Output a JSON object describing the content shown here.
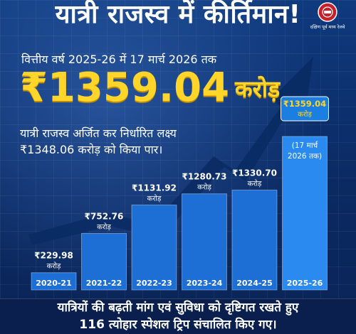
{
  "header": {
    "title": "यात्री राजस्व में कीर्तिमान!",
    "logo_text": "दक्षिण पूर्व मध्य रेलवे"
  },
  "subtitle": "वित्तीय वर्ष 2025-26 में 17 मार्च 2026 तक",
  "highlight": {
    "amount": "₹1359.04",
    "unit": "करोड़"
  },
  "description": {
    "line1": "यात्री राजस्व अर्जित कर निर्धारित लक्ष्य",
    "line2": "₹1348.06 करोड़ को किया पार।"
  },
  "chart_data": {
    "type": "bar",
    "categories": [
      "2020-21",
      "2021-22",
      "2022-23",
      "2023-24",
      "2024-25",
      "2025-26"
    ],
    "values": [
      229.98,
      752.76,
      1131.92,
      1280.73,
      1330.7,
      1359.04
    ],
    "value_labels": [
      "₹229.98",
      "₹752.76",
      "₹1131.92",
      "₹1280.73",
      "₹1330.70",
      "₹1359.04"
    ],
    "value_unit": "करोड़",
    "last_bar_note": [
      "(17 मार्च",
      "2026 तक)"
    ],
    "colors": {
      "bar": "#1d6fd6",
      "bar_highlight": "#2a8af0",
      "badge": "#1a7fe0",
      "label": "#ffffff",
      "arrow": "#0a2b63"
    }
  },
  "footer": {
    "line1": "यात्रियों की बढ़ती मांग एवं सुविधा को दृष्टिगत रखते हुए",
    "line2": "116 त्योहार स्पेशल ट्रिप संचालित किए गए।"
  }
}
